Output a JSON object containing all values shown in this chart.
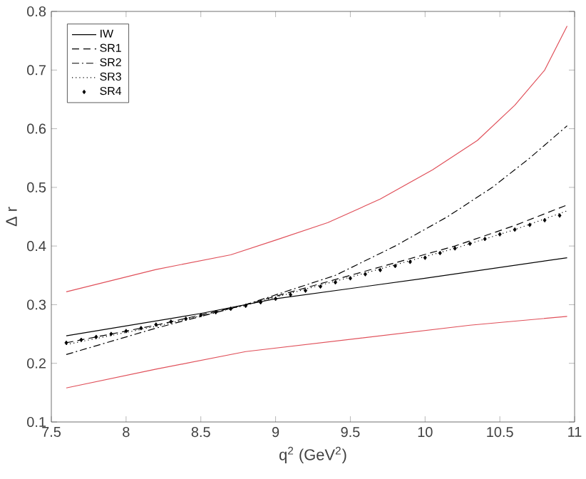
{
  "chart_data": {
    "type": "line",
    "xlabel": "q$^{2}$  (GeV$^{2}$)",
    "ylabel": "Δ r",
    "xlim": [
      7.5,
      11
    ],
    "ylim": [
      0.1,
      0.8
    ],
    "xticks": [
      7.5,
      8,
      8.5,
      9,
      9.5,
      10,
      10.5,
      11
    ],
    "yticks": [
      0.1,
      0.2,
      0.3,
      0.4,
      0.5,
      0.6,
      0.7,
      0.8
    ],
    "grid": false,
    "legend": "top left",
    "series": [
      {
        "name": "IW",
        "color": "#000000",
        "line_style": "solid",
        "x": [
          7.6,
          8.5,
          9.0,
          10.0,
          10.95
        ],
        "values": [
          0.247,
          0.285,
          0.31,
          0.345,
          0.38
        ]
      },
      {
        "name": "SR1",
        "color": "#000000",
        "line_style": "dashed",
        "x": [
          7.6,
          8.2,
          8.8,
          9.5,
          10.2,
          10.6,
          10.95
        ],
        "values": [
          0.235,
          0.265,
          0.3,
          0.35,
          0.4,
          0.435,
          0.47
        ]
      },
      {
        "name": "SR2",
        "color": "#000000",
        "line_style": "dashdot",
        "x": [
          7.6,
          8.2,
          8.8,
          9.4,
          9.8,
          10.15,
          10.45,
          10.7,
          10.95
        ],
        "values": [
          0.215,
          0.26,
          0.3,
          0.35,
          0.4,
          0.45,
          0.5,
          0.55,
          0.605
        ]
      },
      {
        "name": "SR3",
        "color": "#000000",
        "line_style": "dotted",
        "x": [
          7.6,
          8.2,
          8.8,
          9.5,
          10.2,
          10.6,
          10.95
        ],
        "values": [
          0.232,
          0.263,
          0.299,
          0.347,
          0.396,
          0.428,
          0.46
        ]
      },
      {
        "name": "SR4",
        "type": "scatter",
        "marker": "diamond",
        "color": "#000000",
        "x": [
          7.6,
          7.7,
          7.8,
          7.9,
          8.0,
          8.1,
          8.2,
          8.3,
          8.4,
          8.5,
          8.6,
          8.7,
          8.8,
          8.9,
          9.0,
          9.1,
          9.2,
          9.3,
          9.4,
          9.5,
          9.6,
          9.7,
          9.8,
          9.9,
          10.0,
          10.1,
          10.2,
          10.3,
          10.4,
          10.5,
          10.6,
          10.7,
          10.8,
          10.9
        ],
        "values": [
          0.235,
          0.24,
          0.245,
          0.25,
          0.255,
          0.26,
          0.266,
          0.271,
          0.276,
          0.282,
          0.287,
          0.293,
          0.298,
          0.304,
          0.31,
          0.317,
          0.324,
          0.331,
          0.338,
          0.345,
          0.352,
          0.359,
          0.366,
          0.373,
          0.38,
          0.388,
          0.396,
          0.404,
          0.412,
          0.42,
          0.428,
          0.436,
          0.444,
          0.452
        ]
      },
      {
        "color": "#e0505a",
        "line_style": "solid",
        "x": [
          7.6,
          8.2,
          8.7,
          9.0,
          9.35,
          9.7,
          10.05,
          10.35,
          10.6,
          10.8,
          10.95
        ],
        "values": [
          0.322,
          0.36,
          0.385,
          0.41,
          0.44,
          0.48,
          0.53,
          0.58,
          0.64,
          0.7,
          0.775
        ]
      },
      {
        "color": "#e0505a",
        "line_style": "solid",
        "x": [
          7.6,
          8.2,
          8.8,
          9.3,
          9.8,
          10.3,
          10.95
        ],
        "values": [
          0.158,
          0.19,
          0.22,
          0.235,
          0.25,
          0.265,
          0.28
        ]
      }
    ]
  }
}
